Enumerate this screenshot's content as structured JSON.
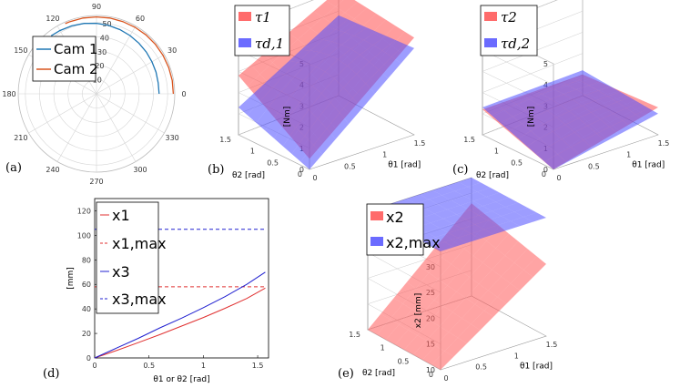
{
  "panel_labels": {
    "a": "(a)",
    "b": "(b)",
    "c": "(c)",
    "d": "(d)",
    "e": "(e)"
  },
  "chart_data": [
    {
      "id": "a",
      "type": "line",
      "projection": "polar",
      "angle_ticks": [
        "0",
        "30",
        "60",
        "90",
        "120",
        "150",
        "180",
        "210",
        "240",
        "270",
        "300",
        "330"
      ],
      "radius_ticks": [
        "10",
        "20",
        "30",
        "40",
        "50"
      ],
      "rlim": [
        0,
        55
      ],
      "series": [
        {
          "name": "Cam 1",
          "color": "#1f77b4",
          "theta_deg": [
            0,
            10,
            20,
            30,
            40,
            50,
            60,
            70,
            80,
            90,
            100,
            110,
            120,
            128
          ],
          "r": [
            44,
            44,
            44.5,
            45,
            45.7,
            46.4,
            47.2,
            48,
            48.8,
            49.5,
            50.2,
            50.8,
            51.3,
            51.7
          ]
        },
        {
          "name": "Cam 2",
          "color": "#d9541e",
          "theta_deg": [
            0,
            10,
            20,
            30,
            40,
            50,
            60,
            70,
            80,
            90,
            100,
            110,
            114
          ],
          "r": [
            54,
            54,
            54,
            54,
            54,
            54,
            54,
            54,
            54,
            54,
            54,
            54,
            54
          ]
        }
      ],
      "legend": {
        "entries": [
          "Cam 1",
          "Cam 2"
        ],
        "position": "upper-left"
      }
    },
    {
      "id": "b",
      "type": "surface3d",
      "xlabel": "θ1 [rad]",
      "ylabel": "θ2 [rad]",
      "zlabel": "[Nm]",
      "x_ticks": [
        "0",
        "0.5",
        "1",
        "1.5"
      ],
      "y_ticks": [
        "0",
        "0.5",
        "1",
        "1.5"
      ],
      "z_ticks": [
        "0",
        "1",
        "2",
        "3",
        "4",
        "5"
      ],
      "zlim": [
        0,
        5
      ],
      "series": [
        {
          "name": "τ1",
          "color": "#ff4d4d",
          "corners": {
            "x0y0": 0.5,
            "x1y0": 4.6,
            "x0y1": 2.8,
            "x1y1": 5.0
          },
          "peak": 5.2
        },
        {
          "name": "τd,1",
          "color": "#4d4dff",
          "corners": {
            "x0y0": 0.0,
            "x1y0": 4.1,
            "x0y1": 1.3,
            "x1y1": 3.8
          },
          "peak": 4.8
        }
      ],
      "legend": {
        "entries": [
          "τ1",
          "τd,1"
        ],
        "position": "upper-left"
      }
    },
    {
      "id": "c",
      "type": "surface3d",
      "xlabel": "θ1 [rad]",
      "ylabel": "θ2 [rad]",
      "zlabel": "[Nm]",
      "x_ticks": [
        "0",
        "0.5",
        "1",
        "1.5"
      ],
      "y_ticks": [
        "0",
        "0.5",
        "1",
        "1.5"
      ],
      "z_ticks": [
        "0",
        "1",
        "2",
        "3",
        "4",
        "5"
      ],
      "zlim": [
        0,
        5
      ],
      "series": [
        {
          "name": "τ2",
          "color": "#ff4d4d",
          "corners": {
            "x0y0": 0.0,
            "x1y0": 1.3,
            "x0y1": 1.2,
            "x1y1": 1.0
          },
          "peak": 1.7
        },
        {
          "name": "τd,2",
          "color": "#4d4dff",
          "corners": {
            "x0y0": 0.0,
            "x1y0": 1.0,
            "x0y1": 1.3,
            "x1y1": 1.2
          },
          "peak": 1.5
        }
      ],
      "legend": {
        "entries": [
          "τ2",
          "τd,2"
        ],
        "position": "upper-left"
      }
    },
    {
      "id": "d",
      "type": "line",
      "xlabel": "θ1 or θ2 [rad]",
      "ylabel": "[mm]",
      "xlim": [
        0,
        1.6
      ],
      "ylim": [
        0,
        130
      ],
      "x_ticks": [
        "0",
        "0.5",
        "1",
        "1.5"
      ],
      "y_ticks": [
        "0",
        "20",
        "40",
        "60",
        "80",
        "100",
        "120"
      ],
      "series": [
        {
          "name": "x1",
          "color": "#e03030",
          "style": "solid",
          "x": [
            0,
            0.2,
            0.4,
            0.6,
            0.8,
            1.0,
            1.2,
            1.4,
            1.57
          ],
          "y": [
            0,
            6,
            12.5,
            19,
            26,
            33,
            40.5,
            48.5,
            57
          ]
        },
        {
          "name": "x1,max",
          "color": "#e03030",
          "style": "dashed",
          "x": [
            0,
            1.57
          ],
          "y": [
            58,
            58
          ]
        },
        {
          "name": "x3",
          "color": "#2020d0",
          "style": "solid",
          "x": [
            0,
            0.2,
            0.4,
            0.6,
            0.8,
            1.0,
            1.2,
            1.4,
            1.57
          ],
          "y": [
            0,
            8,
            16,
            24.5,
            32.5,
            41,
            50,
            60,
            70
          ]
        },
        {
          "name": "x3,max",
          "color": "#2020d0",
          "style": "dashed",
          "x": [
            0,
            1.57
          ],
          "y": [
            105,
            105
          ]
        }
      ],
      "legend": {
        "entries": [
          "x1",
          "x1,max",
          "x3",
          "x3,max"
        ],
        "position": "upper-left"
      }
    },
    {
      "id": "e",
      "type": "surface3d",
      "xlabel": "θ1 [rad]",
      "ylabel": "θ2 [rad]",
      "zlabel": "x2 [mm]",
      "x_ticks": [
        "0",
        "0.5",
        "1",
        "1.5"
      ],
      "y_ticks": [
        "0",
        "0.5",
        "1",
        "1.5"
      ],
      "z_ticks": [
        "10",
        "15",
        "20",
        "25",
        "30"
      ],
      "zlim": [
        10,
        33
      ],
      "series": [
        {
          "name": "x2",
          "color": "#ff5a5a",
          "corners": {
            "x0y0": 10,
            "x1y0": 24,
            "x0y1": 10,
            "x1y1": 28
          },
          "peak": 28
        },
        {
          "name": "x2,max",
          "color": "#4d4dff",
          "corners": {
            "x0y0": 33,
            "x1y0": 33,
            "x0y1": 33,
            "x1y1": 33
          },
          "peak": 33
        }
      ],
      "legend": {
        "entries": [
          "x2",
          "x2,max"
        ],
        "position": "upper-left"
      }
    }
  ]
}
